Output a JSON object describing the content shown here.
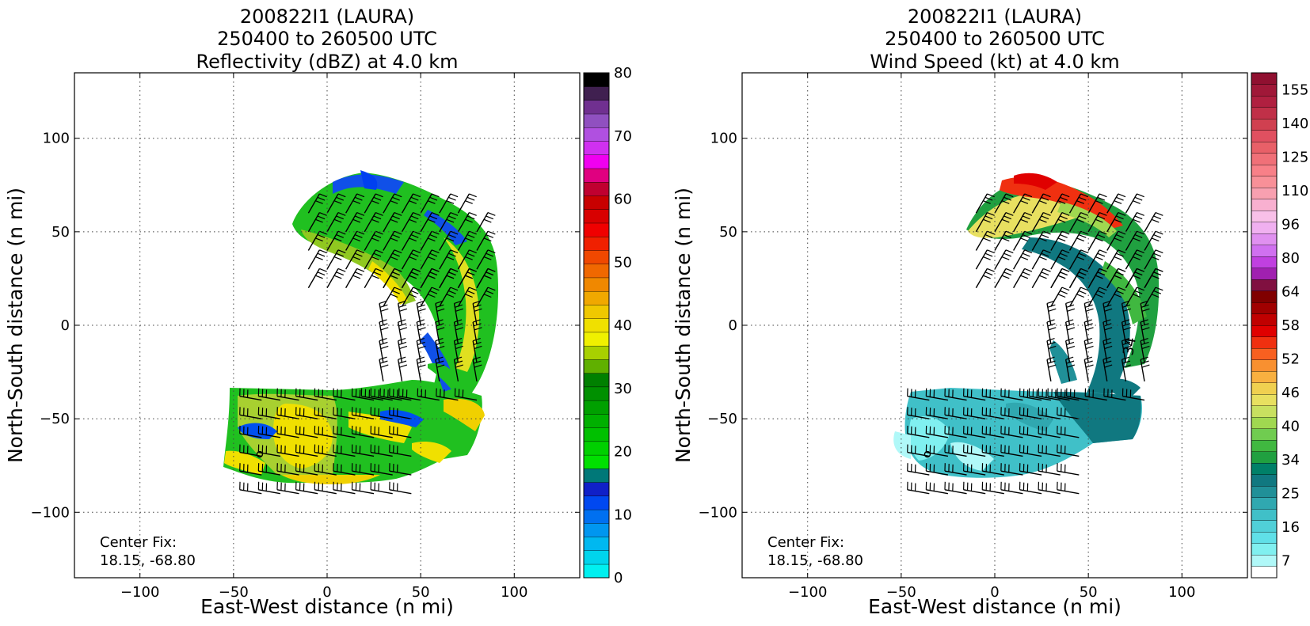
{
  "figure": {
    "width": 1654,
    "height": 787
  },
  "chart_data": [
    {
      "type": "heatmap",
      "title_lines": [
        "200822I1 (LAURA)",
        "250400 to 260500 UTC",
        "Reflectivity (dBZ) at 4.0 km"
      ],
      "xlabel": "East-West distance (n mi)",
      "ylabel": "North-South distance (n mi)",
      "xlim": [
        -135,
        135
      ],
      "ylim": [
        -135,
        135
      ],
      "x_ticks": [
        -100,
        -50,
        0,
        50,
        100
      ],
      "y_ticks": [
        -100,
        -50,
        0,
        50,
        100
      ],
      "x_tick_labels": [
        "−100",
        "−50",
        "0",
        "50",
        "100"
      ],
      "y_tick_labels": [
        "−100",
        "−50",
        "0",
        "50",
        "100"
      ],
      "grid": true,
      "annotation": {
        "line1": "Center Fix:",
        "line2": "18.15, -68.80"
      },
      "colorbar": {
        "min": 0,
        "max": 80,
        "ticks": [
          0,
          10,
          20,
          30,
          40,
          50,
          60,
          70,
          80
        ],
        "colors": [
          "#00f0f0",
          "#00d4ec",
          "#00b8f0",
          "#0096f0",
          "#0070f0",
          "#0048f0",
          "#1020c8",
          "#007878",
          "#00e000",
          "#00d000",
          "#00c000",
          "#00b000",
          "#00a000",
          "#009000",
          "#008000",
          "#60b000",
          "#a8d000",
          "#f0f000",
          "#f0e000",
          "#f0c800",
          "#f0a800",
          "#f08800",
          "#f06800",
          "#f04800",
          "#f02000",
          "#f00000",
          "#d80000",
          "#c80000",
          "#c00030",
          "#e00080",
          "#f000f0",
          "#d030f0",
          "#b050e0",
          "#9050c0",
          "#703090",
          "#402050",
          "#000000"
        ]
      },
      "barbs": "wind barbs overlaid on reflectivity field"
    },
    {
      "type": "heatmap",
      "title_lines": [
        "200822I1 (LAURA)",
        "250400 to 260500 UTC",
        "Wind Speed (kt) at 4.0 km"
      ],
      "xlabel": "East-West distance (n mi)",
      "ylabel": "North-South distance (n mi)",
      "xlim": [
        -135,
        135
      ],
      "ylim": [
        -135,
        135
      ],
      "x_ticks": [
        -100,
        -50,
        0,
        50,
        100
      ],
      "y_ticks": [
        -100,
        -50,
        0,
        50,
        100
      ],
      "x_tick_labels": [
        "−100",
        "−50",
        "0",
        "50",
        "100"
      ],
      "y_tick_labels": [
        "−100",
        "−50",
        "0",
        "50",
        "100"
      ],
      "grid": true,
      "annotation": {
        "line1": "Center Fix:",
        "line2": "18.15, -68.80"
      },
      "contour_label": "34",
      "colorbar": {
        "labels": [
          "7",
          "16",
          "25",
          "34",
          "40",
          "46",
          "52",
          "58",
          "64",
          "80",
          "96",
          "110",
          "125",
          "140",
          "155"
        ],
        "colors": [
          "#ffffff",
          "#b0f8f8",
          "#80f0f0",
          "#60e0e8",
          "#50d0d8",
          "#40c0c8",
          "#30a8b0",
          "#209098",
          "#107880",
          "#008068",
          "#20a040",
          "#40b840",
          "#70cc50",
          "#a0d850",
          "#c8e060",
          "#e8e060",
          "#f0d050",
          "#f8b040",
          "#f89030",
          "#f86020",
          "#f03010",
          "#e00000",
          "#c00000",
          "#a00000",
          "#800000",
          "#801040",
          "#a020b0",
          "#c040e0",
          "#d070f0",
          "#e090f0",
          "#f0b0f0",
          "#f8c0e8",
          "#f8b0d0",
          "#f8a0b0",
          "#f89098",
          "#f88088",
          "#f07078",
          "#e86068",
          "#e05060",
          "#d04050",
          "#c03048",
          "#b02040",
          "#a01838",
          "#901030"
        ]
      },
      "barbs": "wind barbs overlaid on wind speed field"
    }
  ]
}
